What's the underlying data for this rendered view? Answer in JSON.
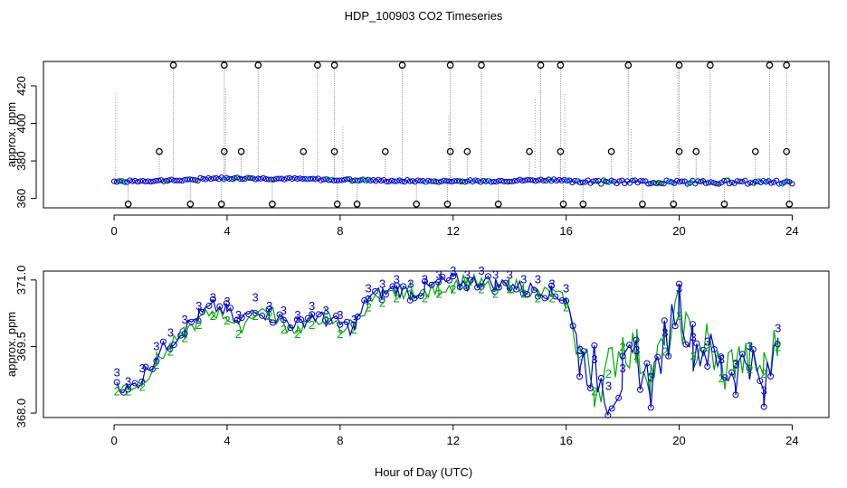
{
  "title": "HDP_100903  CO2 Timeseries",
  "xlabel": "Hour of Day (UTC)",
  "colors": {
    "blue": "#0000cc",
    "green": "#00aa00",
    "cyan": "#00cccc",
    "grey": "#9a9a9a",
    "black": "#000000"
  },
  "chart_data": [
    {
      "type": "scatter",
      "panel": "top",
      "ylabel": "approx. ppm",
      "xlim": [
        -2.5,
        25.3
      ],
      "ylim": [
        355,
        433
      ],
      "xticks": [
        0,
        4,
        8,
        12,
        16,
        20,
        24
      ],
      "yticks": [
        360,
        380,
        400,
        420
      ],
      "baseline": 369,
      "series": [
        {
          "name": "baseline",
          "values_note": "near-constant trace about 369-371 ppm across 0-24 h"
        },
        {
          "name": "spikes_high",
          "x": [
            2.1,
            3.9,
            5.1,
            7.2,
            7.8,
            10.2,
            11.9,
            13.0,
            15.1,
            15.8,
            18.2,
            20.0,
            21.1,
            23.2,
            23.8
          ],
          "y": [
            431,
            431,
            431,
            431,
            431,
            431,
            431,
            431,
            431,
            431,
            431,
            431,
            431,
            431,
            431
          ]
        },
        {
          "name": "spikes_mid",
          "x": [
            1.6,
            3.9,
            4.5,
            6.7,
            7.8,
            9.6,
            11.9,
            12.5,
            14.7,
            15.8,
            17.6,
            20.0,
            20.6,
            22.7,
            23.8
          ],
          "y": [
            385,
            385,
            385,
            385,
            385,
            385,
            385,
            385,
            385,
            385,
            385,
            385,
            385,
            385,
            385
          ]
        },
        {
          "name": "spikes_low",
          "x": [
            0.5,
            2.7,
            3.8,
            5.6,
            7.9,
            8.6,
            10.7,
            11.8,
            13.6,
            15.9,
            16.6,
            18.7,
            19.8,
            21.6,
            23.9
          ],
          "y": [
            357,
            357,
            357,
            357,
            357,
            357,
            357,
            357,
            357,
            357,
            357,
            357,
            357,
            357,
            357
          ]
        }
      ]
    },
    {
      "type": "line",
      "panel": "bottom",
      "ylabel": "approx. ppm",
      "xlim": [
        -2.5,
        25.3
      ],
      "ylim": [
        367.9,
        371.2
      ],
      "xticks": [
        0,
        4,
        8,
        12,
        16,
        20,
        24
      ],
      "yticks": [
        368.0,
        369.5,
        371.0
      ],
      "ytick_labels": [
        "368.0",
        "369.5",
        "371.0"
      ],
      "series": [
        {
          "name": "3",
          "color": "#0000cc",
          "x": [
            0.1,
            0.5,
            1.0,
            1.5,
            2.0,
            2.5,
            3.0,
            3.5,
            4.0,
            4.4,
            5.0,
            5.5,
            6.0,
            6.5,
            7.0,
            7.5,
            8.0,
            8.5,
            9.0,
            9.5,
            10.0,
            10.5,
            11.0,
            11.5,
            12.0,
            12.5,
            13.0,
            13.5,
            14.0,
            14.5,
            15.0,
            15.5,
            16.0,
            16.5,
            17.0,
            17.5,
            18.0,
            18.5,
            19.0,
            19.5,
            20.0,
            20.5,
            21.0,
            21.5,
            22.0,
            22.5,
            23.0,
            23.5
          ],
          "y": [
            368.7,
            368.5,
            368.8,
            369.3,
            369.6,
            369.9,
            370.2,
            370.4,
            370.3,
            370.0,
            370.4,
            370.2,
            370.1,
            370.0,
            370.2,
            370.1,
            370.0,
            369.9,
            370.6,
            370.7,
            370.8,
            370.7,
            370.8,
            370.9,
            371.0,
            370.9,
            371.0,
            370.9,
            370.9,
            370.8,
            370.8,
            370.7,
            370.6,
            369.2,
            369.0,
            368.4,
            368.8,
            369.2,
            368.6,
            369.6,
            370.6,
            369.5,
            369.4,
            369.0,
            368.9,
            369.3,
            368.3,
            369.7
          ]
        },
        {
          "name": "2",
          "color": "#00aa00",
          "x": [
            0.1,
            0.5,
            1.0,
            1.5,
            2.0,
            2.5,
            3.0,
            3.5,
            4.0,
            4.4,
            5.0,
            5.5,
            6.0,
            6.5,
            7.0,
            7.5,
            8.0,
            8.5,
            9.0,
            9.5,
            10.0,
            10.5,
            11.0,
            11.5,
            12.0,
            12.5,
            13.0,
            13.5,
            14.0,
            14.5,
            15.0,
            15.5,
            16.0,
            16.5,
            17.0,
            17.5,
            18.0,
            18.5,
            19.0,
            19.5,
            20.0,
            20.5,
            21.0,
            21.5,
            22.0,
            22.5,
            23.0,
            23.5
          ],
          "y": [
            368.6,
            368.6,
            368.7,
            369.2,
            369.5,
            369.8,
            370.1,
            370.3,
            370.2,
            369.9,
            370.3,
            370.3,
            370.0,
            369.9,
            370.1,
            370.2,
            369.9,
            370.0,
            370.5,
            370.6,
            370.7,
            370.8,
            370.7,
            370.8,
            370.9,
            371.0,
            370.9,
            370.8,
            370.9,
            370.8,
            370.7,
            370.7,
            370.5,
            369.4,
            368.6,
            369.0,
            369.6,
            369.4,
            368.9,
            369.5,
            370.3,
            369.4,
            369.6,
            368.9,
            369.2,
            369.1,
            369.0,
            369.6
          ]
        }
      ]
    }
  ]
}
